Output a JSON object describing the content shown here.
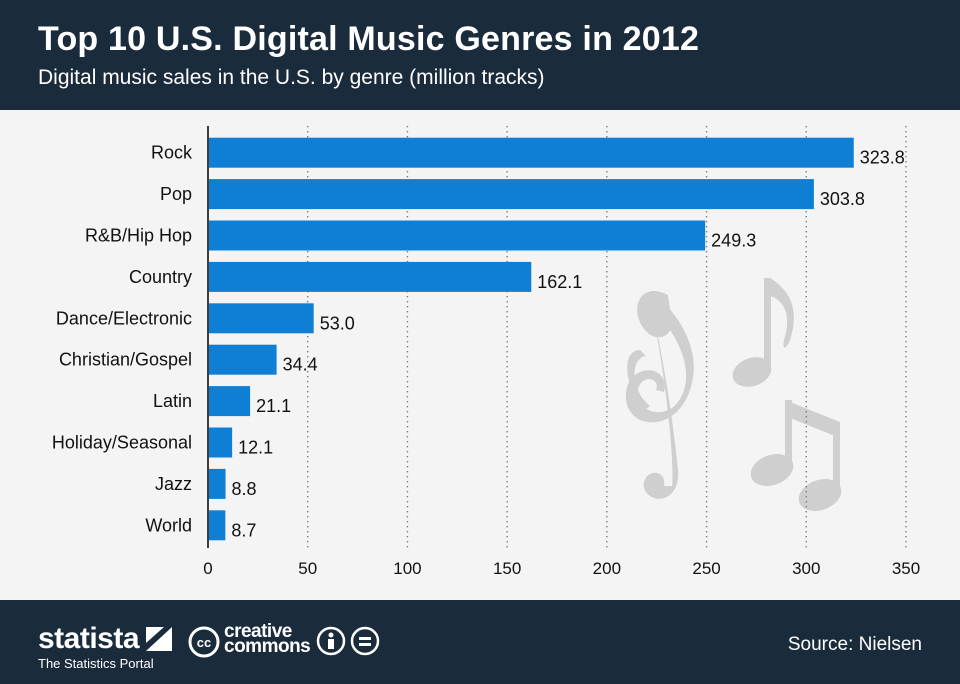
{
  "header": {
    "title": "Top 10 U.S. Digital Music Genres in 2012",
    "subtitle": "Digital music sales in the U.S. by genre (million tracks)"
  },
  "footer": {
    "brand": "statista",
    "tagline": "The Statistics Portal",
    "cc_line1": "creative",
    "cc_line2": "commons",
    "source": "Source: Nielsen"
  },
  "colors": {
    "bar": "#0f7fd6",
    "header_bg": "#1a2b3c",
    "plot_bg": "#f4f4f4",
    "notes": "#cfcfcf"
  },
  "chart_data": {
    "type": "bar",
    "orientation": "horizontal",
    "title": "Top 10 U.S. Digital Music Genres in 2012",
    "subtitle": "Digital music sales in the U.S. by genre (million tracks)",
    "xlabel": "",
    "ylabel": "",
    "xlim": [
      0,
      350
    ],
    "ticks": [
      0,
      50,
      100,
      150,
      200,
      250,
      300,
      350
    ],
    "grid": "vertical-dotted",
    "categories": [
      "Rock",
      "Pop",
      "R&B/Hip Hop",
      "Country",
      "Dance/Electronic",
      "Christian/Gospel",
      "Latin",
      "Holiday/Seasonal",
      "Jazz",
      "World"
    ],
    "values": [
      323.8,
      303.8,
      249.3,
      162.1,
      53.0,
      34.4,
      21.1,
      12.1,
      8.8,
      8.7
    ],
    "value_labels": [
      "323.8",
      "303.8",
      "249.3",
      "162.1",
      "53.0",
      "34.4",
      "21.1",
      "12.1",
      "8.8",
      "8.7"
    ]
  }
}
